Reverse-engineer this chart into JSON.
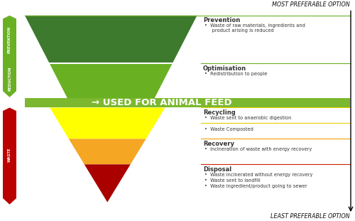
{
  "title_top": "MOST PREFERABLE OPTION",
  "title_bottom": "LEAST PREFERABLE OPTION",
  "fig_bg": "#ffffff",
  "animal_feed_text": "→ USED FOR ANIMAL FEED",
  "animal_feed_color": "#7cb82f",
  "prev_color": "#3d7a2d",
  "opt_color": "#6ab023",
  "rec_color": "#ffff00",
  "rcv_color": "#f5a623",
  "dsp_color": "#aa0000",
  "left_label_top": "PREVENTION",
  "left_label_mid": "REDUCTION",
  "left_label_bot": "WASTE",
  "left_arrow_green": "#6ab023",
  "left_arrow_red": "#bb0000",
  "text_color": "#333333",
  "line_green_dark": "#6ab023",
  "line_yellow": "#e8d000",
  "line_orange": "#f5a000",
  "line_red": "#cc2200"
}
